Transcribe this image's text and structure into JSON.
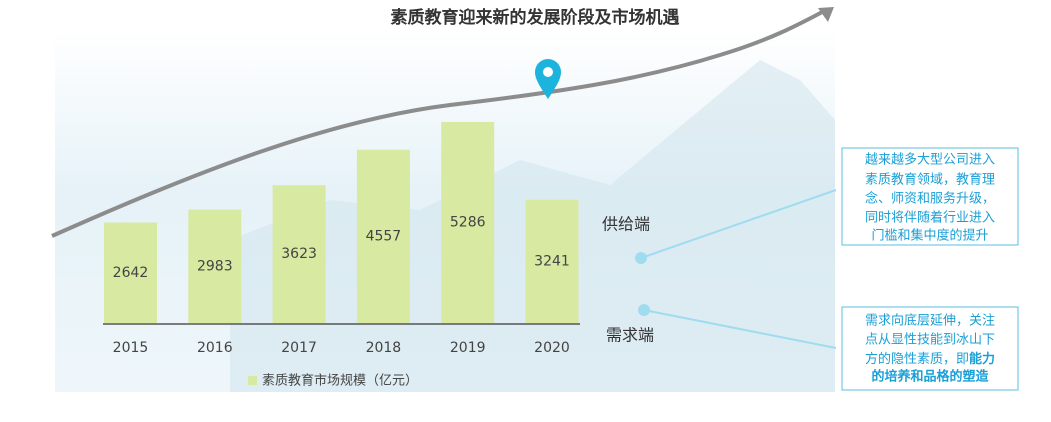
{
  "chart_data": {
    "type": "bar",
    "title": "素质教育迎来新的发展阶段及市场机遇",
    "categories": [
      "2015",
      "2016",
      "2017",
      "2018",
      "2019",
      "2020"
    ],
    "series": [
      {
        "name": "素质教育市场规模（亿元）",
        "color": "#d8e9a2",
        "values": [
          2642,
          2983,
          3623,
          4557,
          5286,
          3241
        ]
      }
    ],
    "annotations": [
      "供给端",
      "需求端"
    ],
    "supply_box": [
      "越来越多大型公司进入",
      "素质教育领域，教育理",
      "念、师资和服务升级，",
      "同时将伴随着行业进入",
      "门槛和集中度的提升"
    ],
    "demand_box": {
      "lines": [
        "需求向底层延伸，关注",
        "点从显性技能到冰山下",
        "方的隐性素质，即"
      ],
      "emphasis": [
        "能力",
        "的培养和品格的塑造"
      ]
    }
  }
}
